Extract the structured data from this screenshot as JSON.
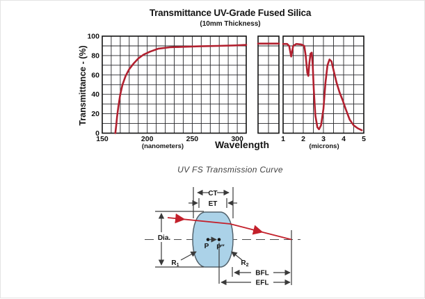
{
  "figure": {
    "caption": "UV FS Transmission Curve"
  },
  "chart_data": {
    "type": "line",
    "title": "Transmittance UV-Grade Fused Silica",
    "subtitle": "(10mm Thickness)",
    "xlabel": "Wavelength",
    "ylabel": "Transmittance - (%)",
    "ylim": [
      0,
      100
    ],
    "yticks": [
      100,
      80,
      60,
      40,
      20,
      0
    ],
    "grid": true,
    "legend": "none",
    "line_color": "#b1202f",
    "panels": [
      {
        "name": "ultraviolet-nanometers",
        "unit_label": "(nanometers)",
        "xlim": [
          150,
          310
        ],
        "xticks": [
          150,
          200,
          250,
          300
        ],
        "points": [
          [
            164.5,
            0
          ],
          [
            165.5,
            8
          ],
          [
            166.5,
            17
          ],
          [
            168,
            28
          ],
          [
            170,
            40
          ],
          [
            172.5,
            50
          ],
          [
            176,
            59
          ],
          [
            180,
            66
          ],
          [
            185,
            72
          ],
          [
            190,
            77
          ],
          [
            196,
            81
          ],
          [
            203,
            84
          ],
          [
            212,
            87
          ],
          [
            225,
            88.5
          ],
          [
            240,
            89
          ],
          [
            258,
            89.5
          ],
          [
            278,
            90
          ],
          [
            298,
            90.5
          ],
          [
            310,
            91
          ]
        ]
      },
      {
        "name": "axis-break",
        "unit_label": "",
        "xlim": [
          0,
          2
        ],
        "xticks": [],
        "points": [
          [
            0,
            92.3
          ],
          [
            2,
            92.3
          ]
        ]
      },
      {
        "name": "infrared-microns",
        "unit_label": "(microns)",
        "xlim": [
          1,
          5
        ],
        "xticks": [
          1,
          2,
          3,
          4,
          5
        ],
        "points": [
          [
            1,
            92
          ],
          [
            1.2,
            92
          ],
          [
            1.3,
            90
          ],
          [
            1.4,
            79
          ],
          [
            1.5,
            90
          ],
          [
            1.65,
            92
          ],
          [
            1.9,
            91.5
          ],
          [
            2.05,
            90
          ],
          [
            2.12,
            80
          ],
          [
            2.2,
            62
          ],
          [
            2.25,
            59
          ],
          [
            2.3,
            72
          ],
          [
            2.36,
            82
          ],
          [
            2.42,
            83
          ],
          [
            2.47,
            70
          ],
          [
            2.52,
            45
          ],
          [
            2.6,
            18
          ],
          [
            2.7,
            6
          ],
          [
            2.78,
            4
          ],
          [
            2.88,
            8
          ],
          [
            3.0,
            25
          ],
          [
            3.1,
            52
          ],
          [
            3.2,
            70
          ],
          [
            3.3,
            76
          ],
          [
            3.4,
            74
          ],
          [
            3.5,
            65
          ],
          [
            3.65,
            52
          ],
          [
            3.8,
            42
          ],
          [
            3.95,
            34
          ],
          [
            4.1,
            25
          ],
          [
            4.3,
            14
          ],
          [
            4.5,
            8
          ],
          [
            4.7,
            5
          ],
          [
            4.9,
            3
          ]
        ]
      }
    ]
  },
  "diagram": {
    "labels": {
      "ct": "CT",
      "et": "ET",
      "dia": "Dia.",
      "p": "P",
      "p_double_prime": "P″",
      "r1_base": "R",
      "r1_sub": "1",
      "r2_base": "R",
      "r2_sub": "2",
      "bfl": "BFL",
      "efl": "EFL"
    },
    "lens_fill": "#abd2e8",
    "ray_color": "#c3202b",
    "line_color": "#3a3a3a"
  }
}
